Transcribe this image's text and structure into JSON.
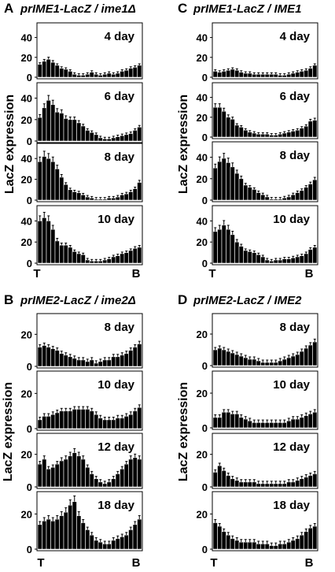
{
  "chart_data": [
    {
      "type": "bar",
      "panel_letter": "A",
      "title": "prIME1-LacZ / ime1Δ",
      "ylabel": "LacZ expression",
      "x_start_label": "T",
      "x_end_label": "B",
      "ylim": [
        0,
        50
      ],
      "yticks": [
        0,
        20,
        40
      ],
      "subplots": [
        {
          "label": "4 day",
          "values": [
            13,
            16,
            18,
            15,
            12,
            9,
            8,
            6,
            3,
            2,
            2,
            3,
            5,
            3,
            2,
            3,
            4,
            3,
            4,
            6,
            7,
            9,
            10,
            12
          ]
        },
        {
          "label": "6 day",
          "values": [
            22,
            31,
            38,
            34,
            27,
            26,
            21,
            20,
            20,
            17,
            14,
            10,
            8,
            6,
            3,
            2,
            2,
            3,
            4,
            5,
            6,
            7,
            10,
            13
          ]
        },
        {
          "label": "8 day",
          "values": [
            37,
            42,
            40,
            37,
            30,
            22,
            15,
            10,
            8,
            7,
            5,
            3,
            2,
            1,
            1,
            1,
            2,
            2,
            3,
            5,
            6,
            8,
            11,
            17
          ]
        },
        {
          "label": "10 day",
          "values": [
            40,
            43,
            40,
            32,
            21,
            17,
            17,
            15,
            11,
            9,
            8,
            3,
            2,
            2,
            2,
            3,
            4,
            6,
            7,
            9,
            10,
            12,
            14,
            15
          ]
        }
      ]
    },
    {
      "type": "bar",
      "panel_letter": "B",
      "title": "prIME2-LacZ / ime2Δ",
      "ylabel": "LacZ expression",
      "x_start_label": "T",
      "x_end_label": "B",
      "ylim": [
        0,
        30
      ],
      "yticks": [
        0,
        20
      ],
      "subplots": [
        {
          "label": "8 day",
          "values": [
            12,
            13,
            12,
            11,
            10,
            8,
            7,
            6,
            5,
            4,
            4,
            3,
            4,
            2,
            3,
            4,
            4,
            6,
            6,
            7,
            8,
            10,
            12,
            14
          ]
        },
        {
          "label": "10 day",
          "values": [
            5,
            7,
            7,
            8,
            9,
            10,
            10,
            10,
            11,
            11,
            11,
            11,
            10,
            8,
            6,
            5,
            5,
            5,
            6,
            6,
            7,
            8,
            10,
            12
          ]
        },
        {
          "label": "12 day",
          "values": [
            14,
            17,
            11,
            12,
            14,
            16,
            17,
            19,
            21,
            19,
            17,
            12,
            8,
            5,
            3,
            2,
            3,
            5,
            8,
            11,
            14,
            17,
            18,
            17
          ]
        },
        {
          "label": "18 day",
          "values": [
            14,
            16,
            17,
            16,
            17,
            19,
            21,
            25,
            27,
            19,
            15,
            11,
            8,
            5,
            4,
            3,
            3,
            5,
            6,
            7,
            8,
            11,
            14,
            17
          ]
        }
      ]
    },
    {
      "type": "bar",
      "panel_letter": "C",
      "title": "prIME1-LacZ / IME1",
      "ylabel": "LacZ expression",
      "x_start_label": "T",
      "x_end_label": "B",
      "ylim": [
        0,
        50
      ],
      "yticks": [
        0,
        20,
        40
      ],
      "subplots": [
        {
          "label": "4 day",
          "values": [
            6,
            5,
            6,
            7,
            8,
            7,
            5,
            4,
            4,
            3,
            3,
            3,
            3,
            3,
            3,
            2,
            2,
            3,
            4,
            5,
            6,
            7,
            9,
            12
          ]
        },
        {
          "label": "6 day",
          "values": [
            30,
            30,
            26,
            20,
            18,
            12,
            10,
            7,
            5,
            4,
            3,
            3,
            3,
            2,
            2,
            3,
            4,
            5,
            6,
            7,
            9,
            11,
            16,
            17
          ]
        },
        {
          "label": "8 day",
          "values": [
            30,
            36,
            39,
            35,
            31,
            25,
            20,
            14,
            12,
            10,
            7,
            5,
            3,
            1,
            1,
            1,
            2,
            3,
            5,
            7,
            9,
            12,
            15,
            19
          ]
        },
        {
          "label": "10 day",
          "values": [
            30,
            32,
            36,
            32,
            27,
            20,
            16,
            12,
            11,
            10,
            8,
            6,
            3,
            2,
            3,
            3,
            4,
            4,
            5,
            6,
            7,
            9,
            13,
            15
          ]
        }
      ]
    },
    {
      "type": "bar",
      "panel_letter": "D",
      "title": "prIME2-LacZ / IME2",
      "ylabel": "LacZ expression",
      "x_start_label": "T",
      "x_end_label": "B",
      "ylim": [
        0,
        30
      ],
      "yticks": [
        0,
        20
      ],
      "subplots": [
        {
          "label": "8 day",
          "values": [
            10,
            11,
            10,
            9,
            8,
            7,
            6,
            5,
            4,
            4,
            3,
            2,
            2,
            2,
            2,
            3,
            4,
            5,
            6,
            7,
            9,
            11,
            13,
            15
          ]
        },
        {
          "label": "10 day",
          "values": [
            6,
            6,
            9,
            9,
            8,
            8,
            6,
            5,
            4,
            3,
            3,
            3,
            3,
            3,
            3,
            3,
            3,
            4,
            5,
            5,
            6,
            7,
            8,
            9
          ]
        },
        {
          "label": "12 day",
          "values": [
            9,
            13,
            10,
            7,
            5,
            4,
            3,
            3,
            3,
            3,
            2,
            2,
            2,
            2,
            2,
            2,
            2,
            3,
            3,
            4,
            5,
            6,
            7,
            8
          ]
        },
        {
          "label": "18 day",
          "values": [
            15,
            13,
            10,
            8,
            6,
            5,
            4,
            4,
            4,
            4,
            3,
            3,
            3,
            2,
            2,
            3,
            3,
            4,
            5,
            6,
            8,
            10,
            12,
            13
          ]
        }
      ]
    }
  ]
}
